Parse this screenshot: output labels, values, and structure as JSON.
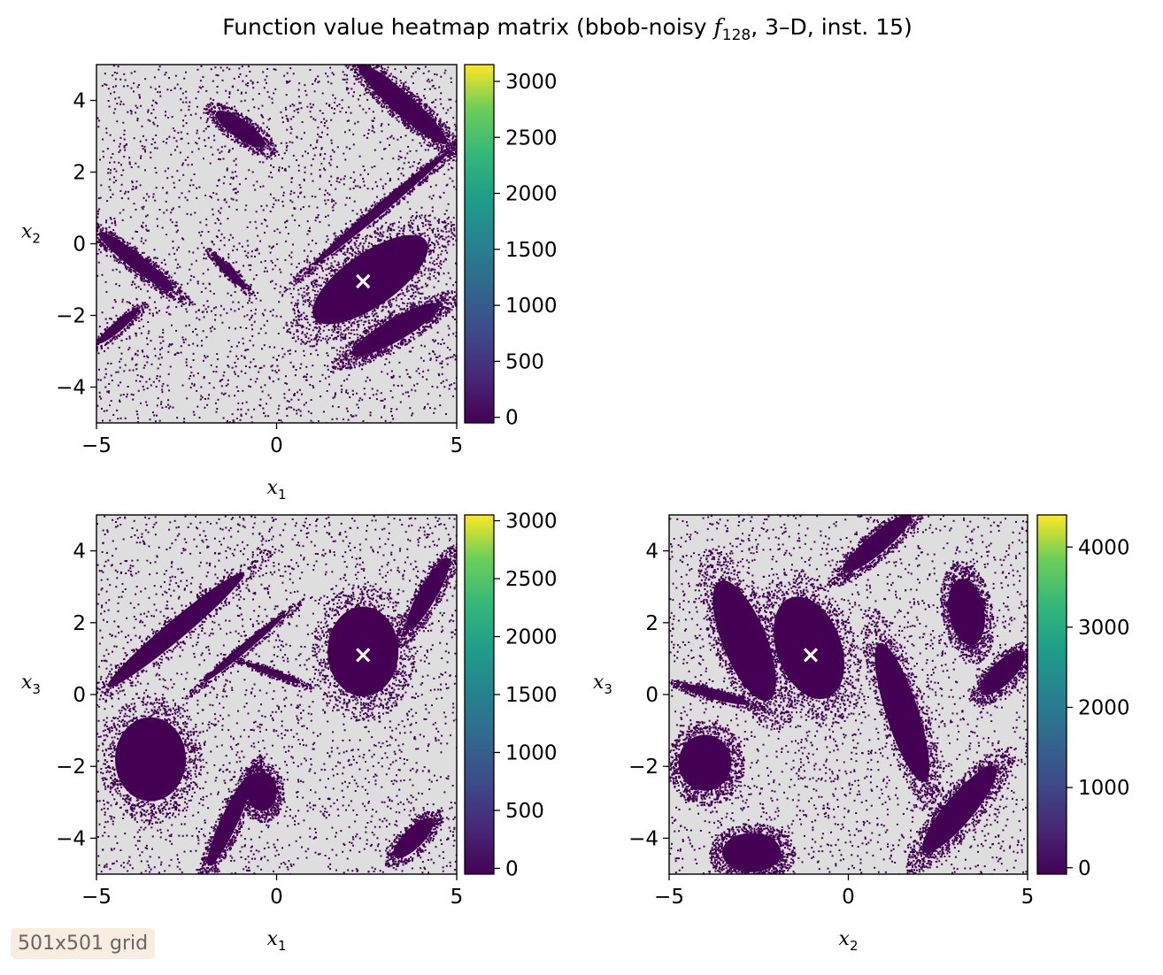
{
  "title": {
    "prefix": "Function value heatmap matrix (bbob-noisy ",
    "func_symbol": "f",
    "func_index": "128",
    "suffix": ", 3–D, inst. 15)"
  },
  "badge": "501x501 grid",
  "colors": {
    "background_cells": "#dedede",
    "low_value": "#440154",
    "marker": "#ffffff",
    "colormap": [
      "#440154",
      "#3b528b",
      "#21918c",
      "#5ec962",
      "#fde725"
    ]
  },
  "chart_data": [
    {
      "type": "heatmap",
      "id": "x1-x2",
      "xlabel": {
        "var": "x",
        "sub": "1"
      },
      "ylabel": {
        "var": "x",
        "sub": "2"
      },
      "xlim": [
        -5,
        5
      ],
      "ylim": [
        -5,
        5
      ],
      "xticks": [
        -5,
        0,
        5
      ],
      "yticks": [
        -4,
        -2,
        0,
        2,
        4
      ],
      "xtick_labels": [
        "−5",
        "0",
        "5"
      ],
      "ytick_labels": [
        "−4",
        "−2",
        "0",
        "2",
        "4"
      ],
      "optimum": [
        2.4,
        -1.05
      ],
      "colorbar": {
        "range": [
          -50,
          3150
        ],
        "ticks": [
          0,
          500,
          1000,
          1500,
          2000,
          2500,
          3000
        ],
        "tick_labels": [
          "0",
          "500",
          "1000",
          "1500",
          "2000",
          "2500",
          "3000"
        ]
      },
      "low_value_regions": [
        {
          "cx": 2.6,
          "cy": -1.0,
          "rx": 2.3,
          "ry": 0.95,
          "angle": 35
        },
        {
          "cx": 3.3,
          "cy": -2.4,
          "rx": 1.7,
          "ry": 0.4,
          "angle": 30
        },
        {
          "cx": 2.9,
          "cy": 1.0,
          "rx": 3.0,
          "ry": 0.18,
          "angle": 40
        },
        {
          "cx": 3.5,
          "cy": 3.9,
          "rx": 2.0,
          "ry": 0.38,
          "angle": -42
        },
        {
          "cx": -1.0,
          "cy": 3.2,
          "rx": 1.0,
          "ry": 0.33,
          "angle": -35
        },
        {
          "cx": -3.9,
          "cy": -0.5,
          "rx": 1.6,
          "ry": 0.27,
          "angle": -38
        },
        {
          "cx": -1.3,
          "cy": -0.8,
          "rx": 0.8,
          "ry": 0.15,
          "angle": -45
        },
        {
          "cx": -4.4,
          "cy": -2.3,
          "rx": 0.9,
          "ry": 0.18,
          "angle": 40
        }
      ]
    },
    {
      "type": "heatmap",
      "id": "x1-x3",
      "xlabel": {
        "var": "x",
        "sub": "1"
      },
      "ylabel": {
        "var": "x",
        "sub": "3"
      },
      "xlim": [
        -5,
        5
      ],
      "ylim": [
        -5,
        5
      ],
      "xticks": [
        -5,
        0,
        5
      ],
      "yticks": [
        -4,
        -2,
        0,
        2,
        4
      ],
      "xtick_labels": [
        "−5",
        "0",
        "5"
      ],
      "ytick_labels": [
        "−4",
        "−2",
        "0",
        "2",
        "4"
      ],
      "optimum": [
        2.4,
        1.1
      ],
      "colorbar": {
        "range": [
          -50,
          3050
        ],
        "ticks": [
          0,
          500,
          1000,
          1500,
          2000,
          2500,
          3000
        ],
        "tick_labels": [
          "0",
          "500",
          "1000",
          "1500",
          "2000",
          "2500",
          "3000"
        ]
      },
      "low_value_regions": [
        {
          "cx": 2.4,
          "cy": 1.2,
          "rx": 1.2,
          "ry": 1.6,
          "angle": 0
        },
        {
          "cx": -3.5,
          "cy": -1.8,
          "rx": 1.2,
          "ry": 1.5,
          "angle": 0
        },
        {
          "cx": -2.8,
          "cy": 1.8,
          "rx": 3.0,
          "ry": 0.35,
          "angle": 40
        },
        {
          "cx": -0.9,
          "cy": 1.3,
          "rx": 1.8,
          "ry": 0.15,
          "angle": 40
        },
        {
          "cx": -1.3,
          "cy": -3.5,
          "rx": 1.7,
          "ry": 0.3,
          "angle": 65
        },
        {
          "cx": 4.2,
          "cy": 2.8,
          "rx": 1.4,
          "ry": 0.32,
          "angle": 60
        },
        {
          "cx": 3.8,
          "cy": -4.0,
          "rx": 0.9,
          "ry": 0.35,
          "angle": 45
        },
        {
          "cx": -0.1,
          "cy": 0.6,
          "rx": 1.0,
          "ry": 0.12,
          "angle": -20
        },
        {
          "cx": -0.4,
          "cy": -2.7,
          "rx": 0.5,
          "ry": 0.7,
          "angle": 0
        }
      ]
    },
    {
      "type": "heatmap",
      "id": "x2-x3",
      "xlabel": {
        "var": "x",
        "sub": "2"
      },
      "ylabel": {
        "var": "x",
        "sub": "3"
      },
      "xlim": [
        -5,
        5
      ],
      "ylim": [
        -5,
        5
      ],
      "xticks": [
        -5,
        0,
        5
      ],
      "yticks": [
        -4,
        -2,
        0,
        2,
        4
      ],
      "xtick_labels": [
        "−5",
        "0",
        "5"
      ],
      "ytick_labels": [
        "−4",
        "−2",
        "0",
        "2",
        "4"
      ],
      "optimum": [
        -1.05,
        1.1
      ],
      "colorbar": {
        "range": [
          -80,
          4400
        ],
        "ticks": [
          0,
          1000,
          2000,
          3000,
          4000
        ],
        "tick_labels": [
          "0",
          "1000",
          "2000",
          "3000",
          "4000"
        ]
      },
      "low_value_regions": [
        {
          "cx": -1.1,
          "cy": 1.3,
          "rx": 1.1,
          "ry": 1.9,
          "angle": 20
        },
        {
          "cx": -2.9,
          "cy": 1.5,
          "rx": 0.75,
          "ry": 2.3,
          "angle": 22
        },
        {
          "cx": 1.5,
          "cy": -0.5,
          "rx": 0.55,
          "ry": 2.6,
          "angle": 18
        },
        {
          "cx": 3.3,
          "cy": 2.3,
          "rx": 0.6,
          "ry": 1.2,
          "angle": 10
        },
        {
          "cx": 3.1,
          "cy": -3.2,
          "rx": 1.9,
          "ry": 0.5,
          "angle": 50
        },
        {
          "cx": 4.3,
          "cy": 0.6,
          "rx": 1.0,
          "ry": 0.4,
          "angle": 45
        },
        {
          "cx": 0.8,
          "cy": 4.2,
          "rx": 1.5,
          "ry": 0.35,
          "angle": 40
        },
        {
          "cx": -4.0,
          "cy": -1.9,
          "rx": 0.9,
          "ry": 1.0,
          "angle": 0
        },
        {
          "cx": -2.7,
          "cy": -4.4,
          "rx": 1.0,
          "ry": 0.7,
          "angle": 0
        },
        {
          "cx": -3.7,
          "cy": 0.0,
          "rx": 1.2,
          "ry": 0.18,
          "angle": -15
        }
      ]
    }
  ]
}
